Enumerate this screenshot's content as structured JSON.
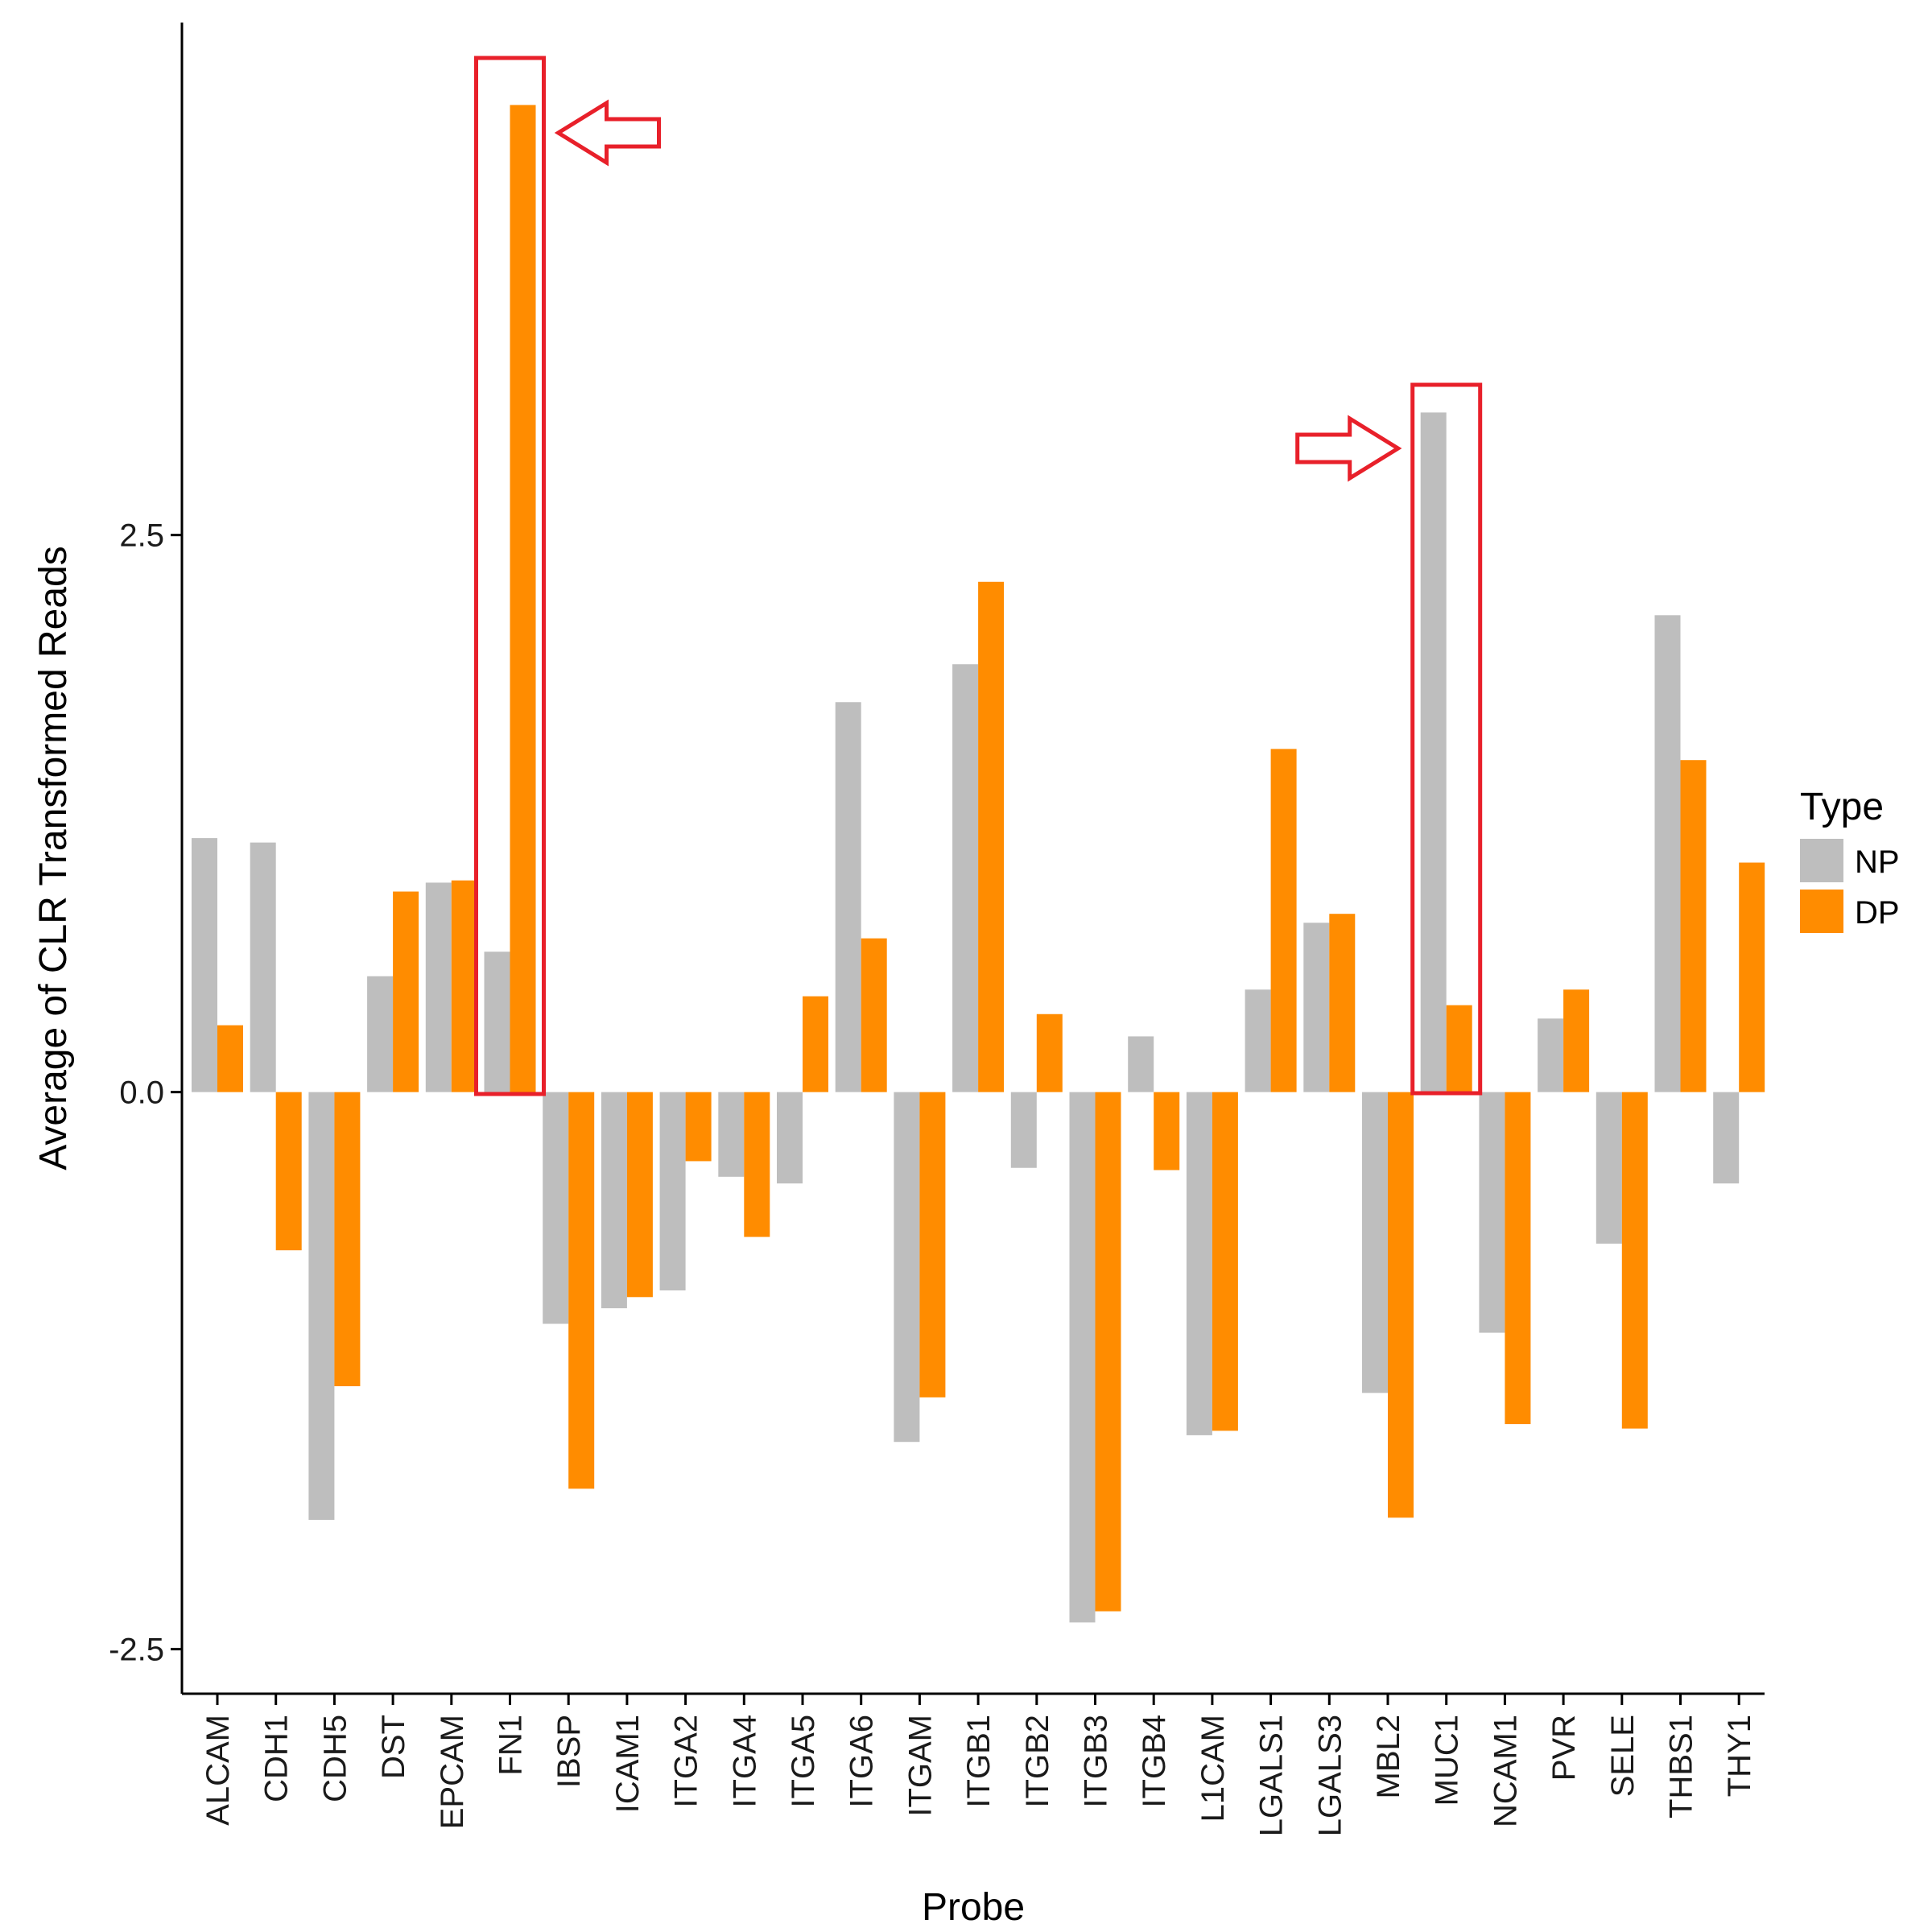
{
  "chart_data": {
    "type": "bar",
    "xlabel": "Probe",
    "ylabel": "Average of CLR Transformed Reads",
    "ylim": [
      -2.7,
      4.8
    ],
    "yticks": [
      -2.5,
      0.0,
      2.5
    ],
    "ytick_labels": [
      "-2.5",
      "0.0",
      "2.5"
    ],
    "grid": false,
    "legend": {
      "title": "Type",
      "position": "right"
    },
    "categories": [
      "ALCAM",
      "CDH1",
      "CDH5",
      "DST",
      "EPCAM",
      "FN1",
      "IBSP",
      "ICAM1",
      "ITGA2",
      "ITGA4",
      "ITGA5",
      "ITGA6",
      "ITGAM",
      "ITGB1",
      "ITGB2",
      "ITGB3",
      "ITGB4",
      "L1CAM",
      "LGALS1",
      "LGALS3",
      "MBL2",
      "MUC1",
      "NCAM1",
      "PVR",
      "SELE",
      "THBS1",
      "THY1"
    ],
    "series": [
      {
        "name": "NP",
        "color": "#bebebe",
        "values": [
          1.14,
          1.12,
          -1.92,
          0.52,
          0.94,
          0.63,
          -1.04,
          -0.97,
          -0.89,
          -0.38,
          -0.41,
          1.75,
          -1.57,
          1.92,
          -0.34,
          -2.38,
          0.25,
          -1.54,
          0.46,
          0.76,
          -1.35,
          3.05,
          -1.08,
          0.33,
          -0.68,
          2.14,
          -0.41
        ]
      },
      {
        "name": "DP",
        "color": "#ff8c00",
        "values": [
          0.3,
          -0.71,
          -1.32,
          0.9,
          0.95,
          4.43,
          -1.78,
          -0.92,
          -0.31,
          -0.65,
          0.43,
          0.69,
          -1.37,
          2.29,
          0.35,
          -2.33,
          -0.35,
          -1.52,
          1.54,
          0.8,
          -1.91,
          0.39,
          -1.49,
          0.46,
          -1.51,
          1.49,
          1.03
        ]
      }
    ],
    "annotations": [
      {
        "type": "highlight-box",
        "category": "FN1",
        "color": "#e8202a"
      },
      {
        "type": "highlight-box",
        "category": "MUC1",
        "color": "#e8202a"
      },
      {
        "type": "arrow",
        "direction": "left",
        "category": "FN1",
        "color": "#e8202a"
      },
      {
        "type": "arrow",
        "direction": "right",
        "category": "MUC1",
        "color": "#e8202a"
      }
    ]
  }
}
